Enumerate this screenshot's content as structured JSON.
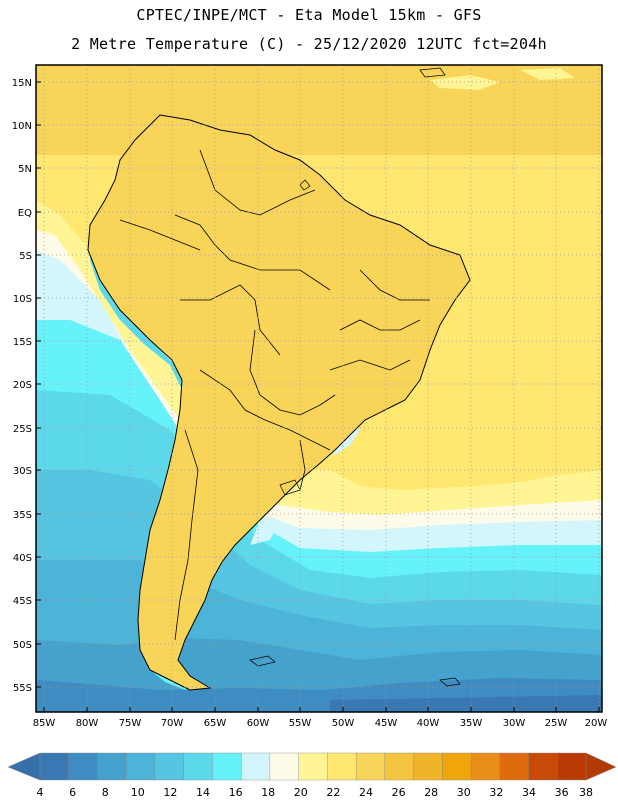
{
  "header": {
    "line1": "CPTEC/INPE/MCT -  Eta Model 15km - GFS",
    "line2": "2 Metre Temperature (C) - 25/12/2020 12UTC fct=204h"
  },
  "map": {
    "lat_labels": [
      "15N",
      "10N",
      "5N",
      "EQ",
      "5S",
      "10S",
      "15S",
      "20S",
      "25S",
      "30S",
      "35S",
      "40S",
      "45S",
      "50S",
      "55S"
    ],
    "lon_labels": [
      "85W",
      "80W",
      "75W",
      "70W",
      "65W",
      "60W",
      "55W",
      "50W",
      "45W",
      "40W",
      "35W",
      "30W",
      "25W",
      "20W"
    ]
  },
  "colorbar": {
    "values": [
      "4",
      "6",
      "8",
      "10",
      "12",
      "14",
      "16",
      "18",
      "20",
      "22",
      "24",
      "26",
      "28",
      "30",
      "32",
      "34",
      "36",
      "38"
    ],
    "colors": [
      "#3a78b4",
      "#3f8cc2",
      "#45a2cd",
      "#4db4d9",
      "#55c5e2",
      "#5cd8eb",
      "#66f2fa",
      "#d2f6fb",
      "#fffbe9",
      "#fff594",
      "#ffe770",
      "#f8d458",
      "#f2c43f",
      "#f0b42a",
      "#efa60c",
      "#e98e18",
      "#de6c0c",
      "#c84a08",
      "#b93a05"
    ],
    "low_color": "#3670a8",
    "high_color": "#b33a05"
  }
}
